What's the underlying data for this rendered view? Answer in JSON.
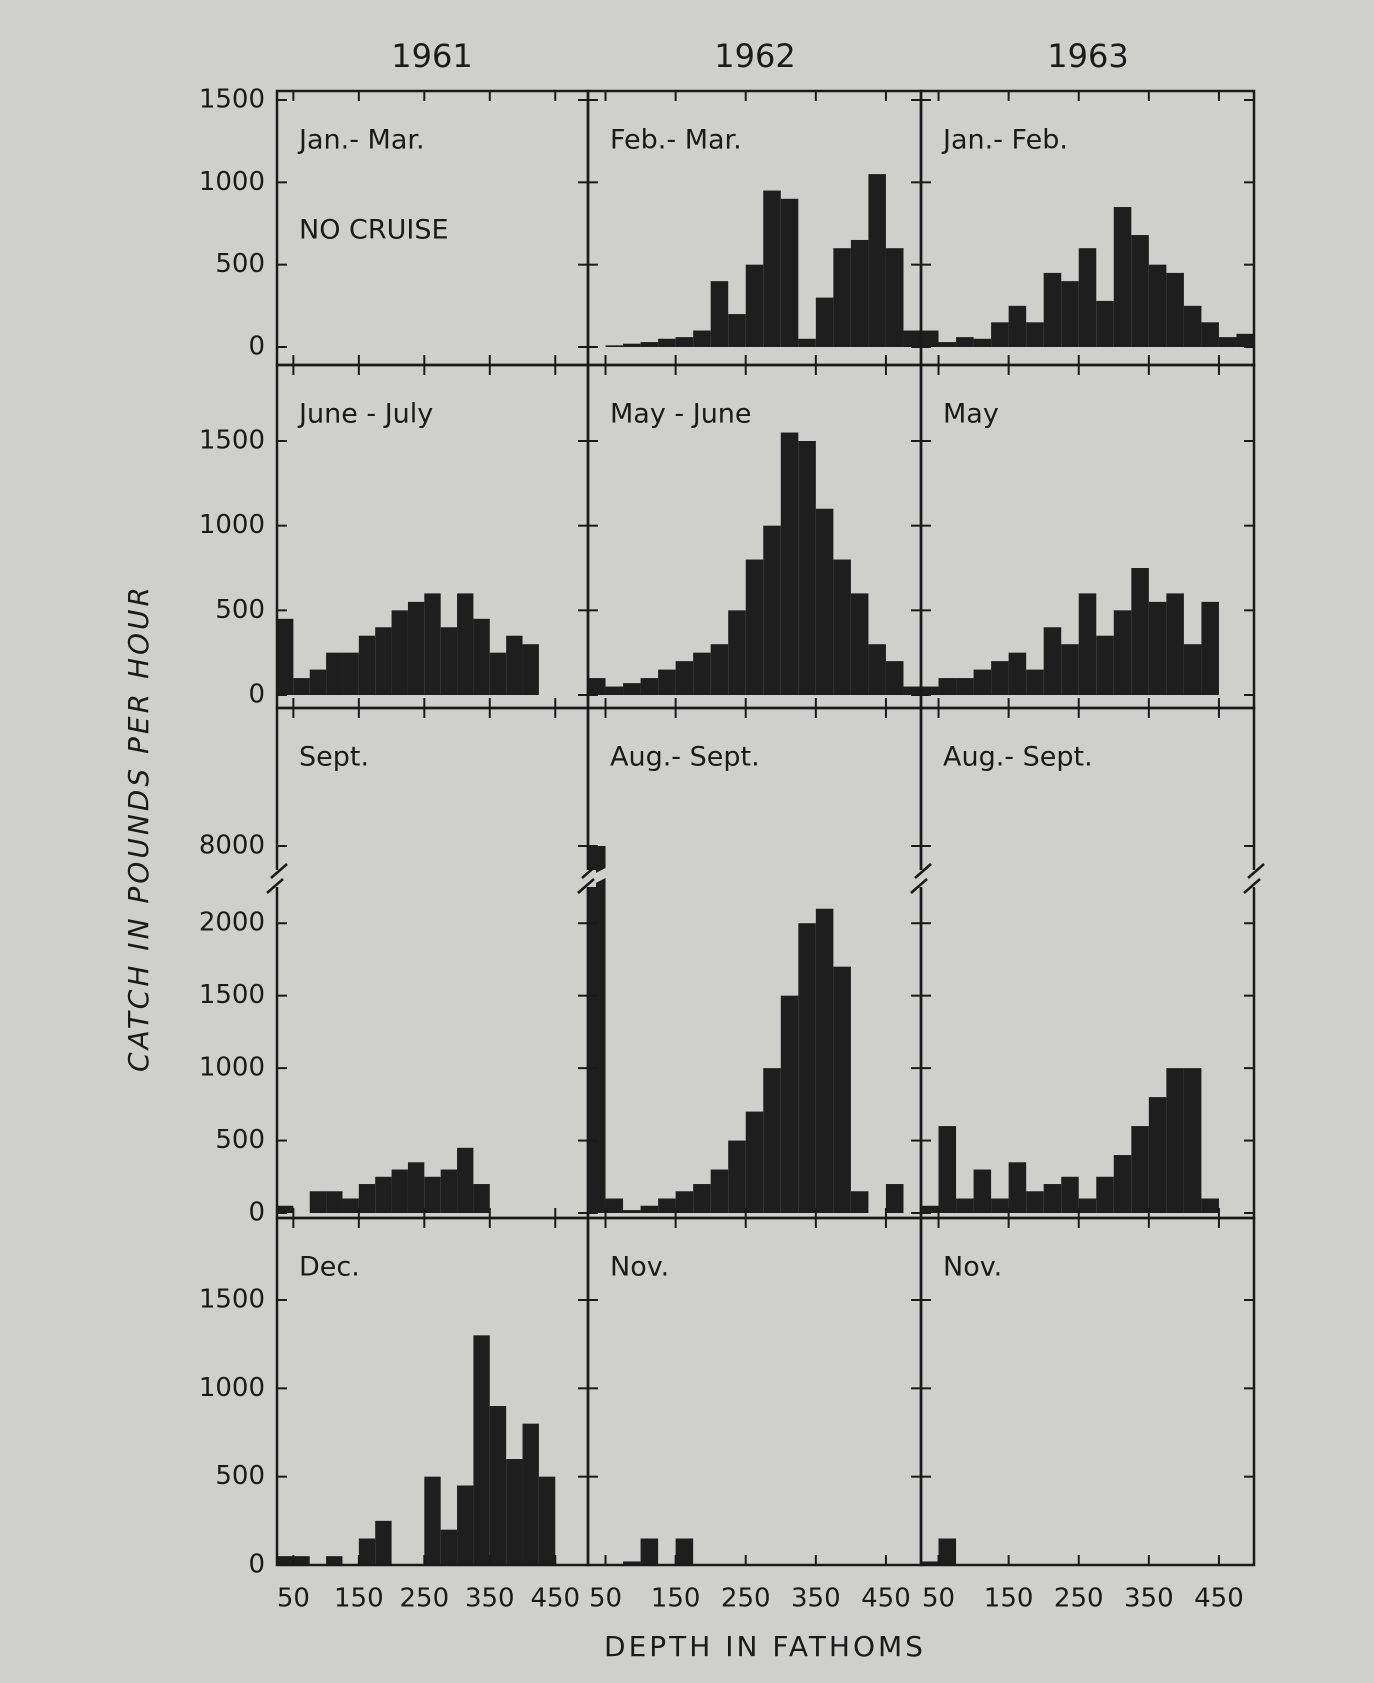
{
  "years": [
    "1961",
    "1962",
    "1963"
  ],
  "y_label": "CATCH IN POUNDS PER HOUR",
  "x_label": "DEPTH IN FATHOMS",
  "chart_data": [
    {
      "type": "histogram",
      "title": "Jan.- Mar.",
      "annotation": "NO CRUISE",
      "color": "#1e1e1e",
      "xlim": [
        25,
        500
      ],
      "xticks": [
        50,
        150,
        250,
        350,
        450
      ],
      "ylim": [
        0,
        1500
      ],
      "yticks": [
        0,
        500,
        1000,
        1500
      ]
    },
    {
      "type": "histogram",
      "title": "Feb.- Mar.",
      "color": "#1e1e1e",
      "bins": [
        25,
        50,
        75,
        100,
        125,
        150,
        175,
        200,
        225,
        250,
        275,
        300,
        325,
        350,
        375,
        400,
        425,
        450,
        475,
        500
      ],
      "counts": [
        0,
        10,
        20,
        30,
        50,
        60,
        100,
        400,
        200,
        500,
        950,
        900,
        50,
        300,
        600,
        650,
        1050,
        600,
        100
      ],
      "xlim": [
        25,
        500
      ],
      "xticks": [
        50,
        150,
        250,
        350,
        450
      ],
      "ylim": [
        0,
        1500
      ],
      "yticks": [
        0,
        500,
        1000,
        1500
      ]
    },
    {
      "type": "histogram",
      "title": "Jan.- Feb.",
      "color": "#1e1e1e",
      "bins": [
        25,
        50,
        75,
        100,
        125,
        150,
        175,
        200,
        225,
        250,
        275,
        300,
        325,
        350,
        375,
        400,
        425,
        450,
        475,
        500
      ],
      "counts": [
        100,
        30,
        60,
        50,
        150,
        250,
        150,
        450,
        400,
        600,
        280,
        850,
        680,
        500,
        450,
        250,
        150,
        60,
        80
      ],
      "xlim": [
        25,
        500
      ],
      "xticks": [
        50,
        150,
        250,
        350,
        450
      ],
      "ylim": [
        0,
        1500
      ],
      "yticks": [
        0,
        500,
        1000,
        1500
      ]
    },
    {
      "type": "histogram",
      "title": "June - July",
      "color": "#1e1e1e",
      "bins": [
        25,
        50,
        75,
        100,
        125,
        150,
        175,
        200,
        225,
        250,
        275,
        300,
        325,
        350,
        375,
        400,
        425,
        450,
        475,
        500
      ],
      "counts": [
        450,
        100,
        150,
        250,
        250,
        350,
        400,
        500,
        550,
        600,
        400,
        600,
        450,
        250,
        350,
        300,
        0,
        0,
        0
      ],
      "xlim": [
        25,
        500
      ],
      "xticks": [
        50,
        150,
        250,
        350,
        450
      ],
      "ylim": [
        0,
        1500
      ],
      "yticks": [
        0,
        500,
        1000,
        1500
      ]
    },
    {
      "type": "histogram",
      "title": "May - June",
      "color": "#1e1e1e",
      "bins": [
        25,
        50,
        75,
        100,
        125,
        150,
        175,
        200,
        225,
        250,
        275,
        300,
        325,
        350,
        375,
        400,
        425,
        450,
        475,
        500
      ],
      "counts": [
        100,
        50,
        70,
        100,
        150,
        200,
        250,
        300,
        500,
        800,
        1000,
        1550,
        1500,
        1100,
        800,
        600,
        300,
        200,
        50
      ],
      "xlim": [
        25,
        500
      ],
      "xticks": [
        50,
        150,
        250,
        350,
        450
      ],
      "ylim": [
        0,
        1500
      ],
      "yticks": [
        0,
        500,
        1000,
        1500
      ]
    },
    {
      "type": "histogram",
      "title": "May",
      "color": "#1e1e1e",
      "bins": [
        25,
        50,
        75,
        100,
        125,
        150,
        175,
        200,
        225,
        250,
        275,
        300,
        325,
        350,
        375,
        400,
        425,
        450,
        475,
        500
      ],
      "counts": [
        50,
        100,
        100,
        150,
        200,
        250,
        150,
        400,
        300,
        600,
        350,
        500,
        750,
        550,
        600,
        300,
        550,
        0,
        0
      ],
      "xlim": [
        25,
        500
      ],
      "xticks": [
        50,
        150,
        250,
        350,
        450
      ],
      "ylim": [
        0,
        1500
      ],
      "yticks": [
        0,
        500,
        1000,
        1500
      ]
    },
    {
      "type": "histogram",
      "title": "Sept.",
      "color": "#1e1e1e",
      "bins": [
        25,
        50,
        75,
        100,
        125,
        150,
        175,
        200,
        225,
        250,
        275,
        300,
        325,
        350,
        375,
        400,
        425,
        450,
        475,
        500
      ],
      "counts": [
        50,
        0,
        150,
        150,
        100,
        200,
        250,
        300,
        350,
        250,
        300,
        450,
        200,
        0,
        0,
        0,
        0,
        0,
        0
      ],
      "xlim": [
        25,
        500
      ],
      "xticks": [
        50,
        150,
        250,
        350,
        450
      ],
      "ylim": [
        0,
        8000
      ],
      "axis_break": [
        2250,
        7750
      ],
      "yticks": [
        0,
        500,
        1000,
        1500,
        2000,
        8000
      ]
    },
    {
      "type": "histogram",
      "title": "Aug.- Sept.",
      "color": "#1e1e1e",
      "bins": [
        25,
        50,
        75,
        100,
        125,
        150,
        175,
        200,
        225,
        250,
        275,
        300,
        325,
        350,
        375,
        400,
        425,
        450,
        475,
        500
      ],
      "counts": [
        8000,
        100,
        20,
        50,
        100,
        150,
        200,
        300,
        500,
        700,
        1000,
        1500,
        2000,
        2100,
        1700,
        150,
        0,
        200,
        0
      ],
      "xlim": [
        25,
        500
      ],
      "xticks": [
        50,
        150,
        250,
        350,
        450
      ],
      "ylim": [
        0,
        8000
      ],
      "axis_break": [
        2250,
        7750
      ],
      "yticks": [
        0,
        500,
        1000,
        1500,
        2000,
        8000
      ]
    },
    {
      "type": "histogram",
      "title": "Aug.- Sept.",
      "color": "#1e1e1e",
      "bins": [
        25,
        50,
        75,
        100,
        125,
        150,
        175,
        200,
        225,
        250,
        275,
        300,
        325,
        350,
        375,
        400,
        425,
        450,
        475,
        500
      ],
      "counts": [
        50,
        600,
        100,
        300,
        100,
        350,
        150,
        200,
        250,
        100,
        250,
        400,
        600,
        800,
        1000,
        1000,
        100,
        0,
        0
      ],
      "xlim": [
        25,
        500
      ],
      "xticks": [
        50,
        150,
        250,
        350,
        450
      ],
      "ylim": [
        0,
        8000
      ],
      "axis_break": [
        2250,
        7750
      ],
      "yticks": [
        0,
        500,
        1000,
        1500,
        2000,
        8000
      ]
    },
    {
      "type": "histogram",
      "title": "Dec.",
      "color": "#1e1e1e",
      "bins": [
        25,
        50,
        75,
        100,
        125,
        150,
        175,
        200,
        225,
        250,
        275,
        300,
        325,
        350,
        375,
        400,
        425,
        450,
        475,
        500
      ],
      "counts": [
        50,
        50,
        0,
        50,
        0,
        150,
        250,
        0,
        0,
        500,
        200,
        450,
        1300,
        900,
        600,
        800,
        500,
        0,
        0
      ],
      "xlim": [
        25,
        500
      ],
      "xticks": [
        50,
        150,
        250,
        350,
        450
      ],
      "ylim": [
        0,
        1500
      ],
      "yticks": [
        0,
        500,
        1000,
        1500
      ]
    },
    {
      "type": "histogram",
      "title": "Nov.",
      "color": "#1e1e1e",
      "bins": [
        25,
        50,
        75,
        100,
        125,
        150,
        175,
        200,
        225,
        250,
        275,
        300,
        325,
        350,
        375,
        400,
        425,
        450,
        475,
        500
      ],
      "counts": [
        0,
        0,
        20,
        150,
        0,
        150,
        0,
        0,
        0,
        0,
        0,
        0,
        0,
        0,
        0,
        0,
        0,
        0,
        0
      ],
      "xlim": [
        25,
        500
      ],
      "xticks": [
        50,
        150,
        250,
        350,
        450
      ],
      "ylim": [
        0,
        1500
      ],
      "yticks": [
        0,
        500,
        1000,
        1500
      ]
    },
    {
      "type": "histogram",
      "title": "Nov.",
      "color": "#1e1e1e",
      "bins": [
        25,
        50,
        75,
        100,
        125,
        150,
        175,
        200,
        225,
        250,
        275,
        300,
        325,
        350,
        375,
        400,
        425,
        450,
        475,
        500
      ],
      "counts": [
        20,
        150,
        0,
        0,
        0,
        0,
        0,
        0,
        0,
        0,
        0,
        0,
        0,
        0,
        0,
        0,
        0,
        0,
        0
      ],
      "xlim": [
        25,
        500
      ],
      "xticks": [
        50,
        150,
        250,
        350,
        450
      ],
      "ylim": [
        0,
        1500
      ],
      "yticks": [
        0,
        500,
        1000,
        1500
      ]
    }
  ]
}
